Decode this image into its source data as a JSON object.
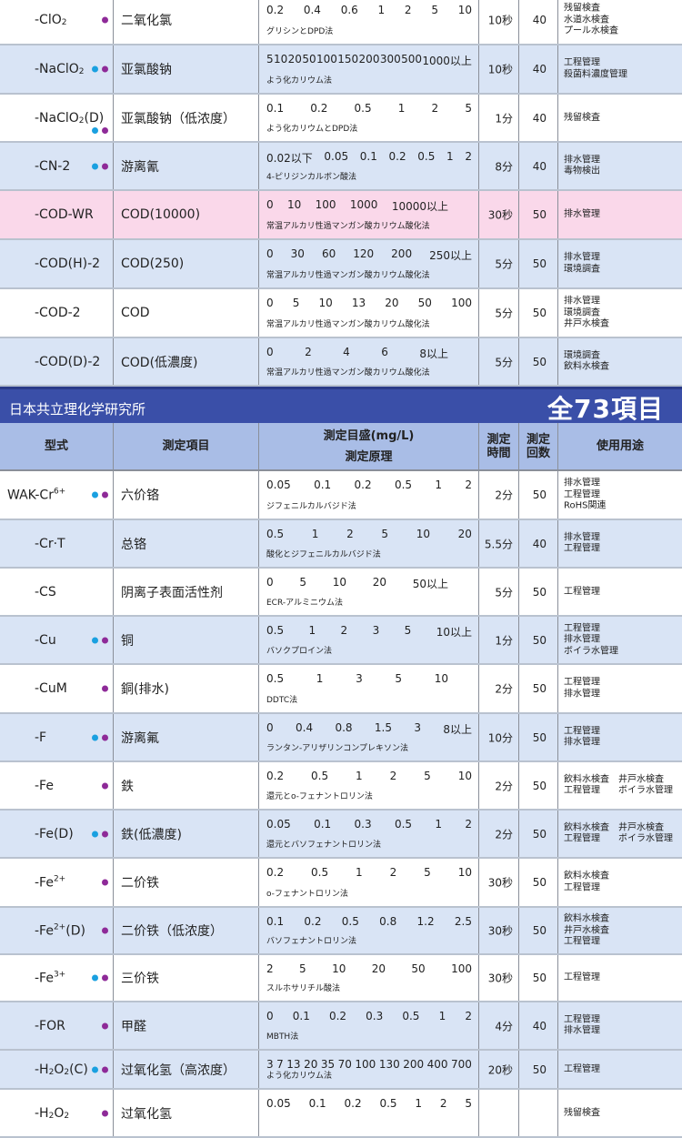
{
  "colors": {
    "cyan_dot": "#1aa0e0",
    "purple_dot": "#8e2a98",
    "banner": "#3a4fa8",
    "header": "#a9bde6",
    "row_blue": "#d9e4f5",
    "row_pink": "#fad8ea"
  },
  "top_rows": [
    {
      "model": [
        {
          "t": "-ClO"
        },
        {
          "t": "2",
          "s": "sub"
        }
      ],
      "dots": [
        "purple"
      ],
      "item": "二氧化氯",
      "scale": [
        "0.2",
        "0.4",
        "0.6",
        "1",
        "2",
        "5",
        "10"
      ],
      "method": "グリシンとDPD法",
      "time": "10秒",
      "count": "40",
      "use": [
        "残留検査",
        "水道水検査",
        "プール水検査"
      ],
      "bg": "white"
    },
    {
      "model": [
        {
          "t": "-NaClO"
        },
        {
          "t": "2",
          "s": "sub"
        }
      ],
      "dots": [
        "cyan",
        "purple"
      ],
      "item": "亚氯酸钠",
      "scale": [
        "5",
        "10",
        "20",
        "50",
        "100",
        "150",
        "200",
        "300",
        "500",
        "1000以上"
      ],
      "method": "よう化カリウム法",
      "time": "10秒",
      "count": "40",
      "use": [
        "工程管理",
        "殺菌料濃度管理"
      ],
      "bg": "blue"
    },
    {
      "model": [
        {
          "t": "-NaClO"
        },
        {
          "t": "2",
          "s": "sub"
        },
        {
          "t": "(D)"
        }
      ],
      "dots": [
        "cyan",
        "purple"
      ],
      "dots_low": true,
      "item": "亚氯酸钠（低浓度）",
      "scale": [
        "0.1",
        "0.2",
        "0.5",
        "1",
        "2",
        "5"
      ],
      "method": "よう化カリウムとDPD法",
      "time": "1分",
      "count": "40",
      "use": [
        "残留検査"
      ],
      "bg": "white"
    },
    {
      "model": [
        {
          "t": "-CN-2"
        }
      ],
      "dots": [
        "cyan",
        "purple"
      ],
      "item": "游离氰",
      "scale": [
        "0.02以下",
        "0.05",
        "0.1",
        "0.2",
        "0.5",
        "1",
        "2"
      ],
      "method": "4-ピリジンカルボン酸法",
      "time": "8分",
      "count": "40",
      "use": [
        "排水管理",
        "毒物検出"
      ],
      "bg": "blue"
    },
    {
      "model": [
        {
          "t": "-COD-WR"
        }
      ],
      "dots": [],
      "item": "COD(10000)",
      "scale": [
        "0",
        "10",
        "100",
        "1000",
        "10000以上"
      ],
      "method": "常温アルカリ性過マンガン酸カリウム酸化法",
      "time": "30秒",
      "count": "50",
      "use": [
        "排水管理"
      ],
      "bg": "pink"
    },
    {
      "model": [
        {
          "t": "-COD(H)-2"
        }
      ],
      "dots": [],
      "item": "COD(250)",
      "scale": [
        "0",
        "30",
        "60",
        "120",
        "200",
        "250以上"
      ],
      "method": "常温アルカリ性過マンガン酸カリウム酸化法",
      "time": "5分",
      "count": "50",
      "use": [
        "排水管理",
        "環境調査"
      ],
      "bg": "blue"
    },
    {
      "model": [
        {
          "t": "-COD-2"
        }
      ],
      "dots": [],
      "item": "COD",
      "scale": [
        "0",
        "5",
        "10",
        "13",
        "20",
        "50",
        "100"
      ],
      "method": "常温アルカリ性過マンガン酸カリウム酸化法",
      "time": "5分",
      "count": "50",
      "use": [
        "排水管理",
        "環境調査",
        "井戸水検査"
      ],
      "bg": "white"
    },
    {
      "model": [
        {
          "t": "-COD(D)-2"
        }
      ],
      "dots": [],
      "item": "COD(低濃度)",
      "scale": [
        "0",
        "2",
        "4",
        "6",
        "8以上"
      ],
      "method": "常温アルカリ性過マンガン酸カリウム酸化法",
      "time": "5分",
      "count": "50",
      "use": [
        "環境調査",
        "飲料水検査"
      ],
      "bg": "blue"
    }
  ],
  "banner": {
    "maker": "日本共立理化学研究所",
    "total": "全73項目"
  },
  "header": {
    "model": "型式",
    "item": "測定項目",
    "scale": "測定目盛(mg/L)",
    "method": "測定原理",
    "time": "測定\n時間",
    "count": "測定\n回数",
    "use": "使用用途"
  },
  "bottom_rows": [
    {
      "model": [
        {
          "t": "WAK-Cr"
        },
        {
          "t": "6+",
          "s": "sup"
        }
      ],
      "wak": true,
      "dots": [
        "cyan",
        "purple"
      ],
      "item": "六价铬",
      "scale": [
        "0.05",
        "0.1",
        "0.2",
        "0.5",
        "1",
        "2"
      ],
      "method": "ジフェニルカルバジド法",
      "time": "2分",
      "count": "50",
      "use": [
        "排水管理",
        "工程管理",
        "RoHS関連"
      ],
      "bg": "white"
    },
    {
      "model": [
        {
          "t": "-Cr·T"
        }
      ],
      "dots": [],
      "item": "总铬",
      "scale": [
        "0.5",
        "1",
        "2",
        "5",
        "10",
        "20"
      ],
      "method": "酸化とジフェニルカルバジド法",
      "time": "5.5分",
      "count": "40",
      "use": [
        "排水管理",
        "工程管理"
      ],
      "bg": "blue"
    },
    {
      "model": [
        {
          "t": "-CS"
        }
      ],
      "dots": [],
      "item": "阴离子表面活性剂",
      "scale": [
        "0",
        "5",
        "10",
        "20",
        "50以上"
      ],
      "method": "ECR-アルミニウム法",
      "time": "5分",
      "count": "50",
      "use": [
        "工程管理"
      ],
      "bg": "white"
    },
    {
      "model": [
        {
          "t": "-Cu"
        }
      ],
      "dots": [
        "cyan",
        "purple"
      ],
      "item": "铜",
      "scale": [
        "0.5",
        "1",
        "2",
        "3",
        "5",
        "10以上"
      ],
      "method": "バソクプロイン法",
      "time": "1分",
      "count": "50",
      "use": [
        "工程管理",
        "排水管理",
        "ボイラ水管理"
      ],
      "bg": "blue"
    },
    {
      "model": [
        {
          "t": "-CuM"
        }
      ],
      "dots": [
        "purple"
      ],
      "item": "銅(排水)",
      "scale": [
        "0.5",
        "1",
        "3",
        "5",
        "10"
      ],
      "method": "DDTC法",
      "time": "2分",
      "count": "50",
      "use": [
        "工程管理",
        "排水管理"
      ],
      "bg": "white"
    },
    {
      "model": [
        {
          "t": "-F"
        }
      ],
      "dots": [
        "cyan",
        "purple"
      ],
      "item": "游离氟",
      "scale": [
        "0",
        "0.4",
        "0.8",
        "1.5",
        "3",
        "8以上"
      ],
      "method": "ランタン-アリザリンコンプレキソン法",
      "time": "10分",
      "count": "50",
      "use": [
        "工程管理",
        "排水管理"
      ],
      "bg": "blue"
    },
    {
      "model": [
        {
          "t": "-Fe"
        }
      ],
      "dots": [
        "purple"
      ],
      "item": "鉄",
      "scale": [
        "0.2",
        "0.5",
        "1",
        "2",
        "5",
        "10"
      ],
      "method": "還元とo-フェナントロリン法",
      "time": "2分",
      "count": "50",
      "use": [
        "飲料水検査　井戸水検査",
        "工程管理　　ボイラ水管理"
      ],
      "bg": "white"
    },
    {
      "model": [
        {
          "t": "-Fe(D)"
        }
      ],
      "dots": [
        "cyan",
        "purple"
      ],
      "item": "鉄(低濃度)",
      "scale": [
        "0.05",
        "0.1",
        "0.3",
        "0.5",
        "1",
        "2"
      ],
      "method": "還元とバソフェナントロリン法",
      "time": "2分",
      "count": "50",
      "use": [
        "飲料水検査　井戸水検査",
        "工程管理　　ボイラ水管理"
      ],
      "bg": "blue"
    },
    {
      "model": [
        {
          "t": "-Fe"
        },
        {
          "t": "2+",
          "s": "sup"
        }
      ],
      "dots": [
        "purple"
      ],
      "item": "二价铁",
      "scale": [
        "0.2",
        "0.5",
        "1",
        "2",
        "5",
        "10"
      ],
      "method": "o-フェナントロリン法",
      "time": "30秒",
      "count": "50",
      "use": [
        "飲料水検査",
        "工程管理"
      ],
      "bg": "white"
    },
    {
      "model": [
        {
          "t": "-Fe"
        },
        {
          "t": "2+",
          "s": "sup"
        },
        {
          "t": "(D)"
        }
      ],
      "dots": [
        "purple"
      ],
      "item": "二价铁（低浓度）",
      "scale": [
        "0.1",
        "0.2",
        "0.5",
        "0.8",
        "1.2",
        "2.5"
      ],
      "method": "バソフェナントロリン法",
      "time": "30秒",
      "count": "50",
      "use": [
        "飲料水検査",
        "井戸水検査",
        "工程管理"
      ],
      "bg": "blue"
    },
    {
      "model": [
        {
          "t": "-Fe"
        },
        {
          "t": "3+",
          "s": "sup"
        }
      ],
      "dots": [
        "cyan",
        "purple"
      ],
      "item": "三价铁",
      "scale": [
        "2",
        "5",
        "10",
        "20",
        "50",
        "100"
      ],
      "method": "スルホサリチル酸法",
      "time": "30秒",
      "count": "50",
      "use": [
        "工程管理"
      ],
      "bg": "white"
    },
    {
      "model": [
        {
          "t": "-FOR"
        }
      ],
      "dots": [
        "purple"
      ],
      "item": "甲醛",
      "scale": [
        "0",
        "0.1",
        "0.2",
        "0.3",
        "0.5",
        "1",
        "2"
      ],
      "method": "MBTH法",
      "time": "4分",
      "count": "40",
      "use": [
        "工程管理",
        "排水管理"
      ],
      "bg": "blue"
    },
    {
      "model": [
        {
          "t": "-H"
        },
        {
          "t": "2",
          "s": "sub"
        },
        {
          "t": "O"
        },
        {
          "t": "2",
          "s": "sub"
        },
        {
          "t": "(C)"
        }
      ],
      "dots": [
        "cyan",
        "purple"
      ],
      "item": "过氧化氢（高浓度）",
      "scale": [
        "3",
        "7",
        "13",
        "20",
        "35",
        "70",
        "100",
        "130",
        "200",
        "400",
        "700"
      ],
      "method": "よう化カリウム法",
      "time": "20秒",
      "count": "50",
      "use": [
        "工程管理"
      ],
      "bg": "blue"
    },
    {
      "model": [
        {
          "t": "-H"
        },
        {
          "t": "2",
          "s": "sub"
        },
        {
          "t": "O"
        },
        {
          "t": "2",
          "s": "sub"
        }
      ],
      "dots": [
        "purple"
      ],
      "item": "过氧化氢",
      "scale": [
        "0.05",
        "0.1",
        "0.2",
        "0.5",
        "1",
        "2",
        "5"
      ],
      "method": "",
      "time": "",
      "count": "",
      "use": [
        "残留検査"
      ],
      "bg": "white"
    }
  ]
}
